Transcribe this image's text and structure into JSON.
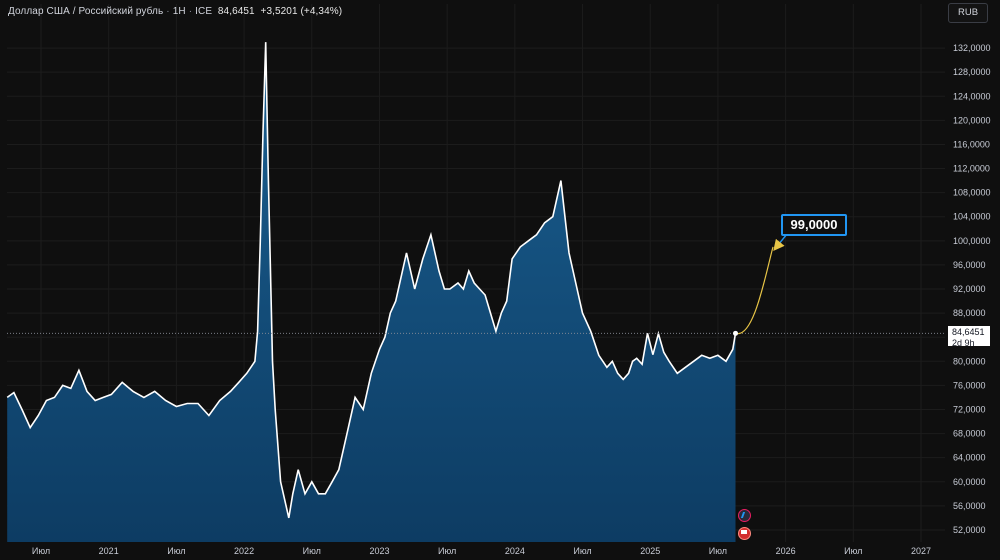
{
  "legend": {
    "instrument": "Доллар США / Российский рубль",
    "interval": "1Н",
    "exchange": "ICE",
    "price": "84,6451",
    "change": "+3,5201 (+4,34%)"
  },
  "currency_button": "RUB",
  "price_tag": {
    "value": "84,6451",
    "countdown": "2d 9h"
  },
  "target_label": "99,0000",
  "colors": {
    "line": "#ffffff",
    "area_top": "#1a5f91",
    "area_bottom": "#0d3c63",
    "projection": "#e8c547",
    "target_border": "#2196f3"
  },
  "chart_data": {
    "type": "area",
    "title": "",
    "ylim": [
      50,
      136
    ],
    "y_ticks": [
      "132,0000",
      "128,0000",
      "124,0000",
      "120,0000",
      "116,0000",
      "112,0000",
      "108,0000",
      "104,0000",
      "100,0000",
      "96,0000",
      "92,0000",
      "88,0000",
      "84,0000",
      "80,0000",
      "76,0000",
      "72,0000",
      "68,0000",
      "64,0000",
      "60,0000",
      "56,0000",
      "52,0000"
    ],
    "x_ticks": [
      "Июл",
      "2021",
      "Июл",
      "2022",
      "Июл",
      "2023",
      "Июл",
      "2024",
      "Июл",
      "2025",
      "Июл",
      "2026",
      "Июл",
      "2027"
    ],
    "x_tick_dates": [
      2020.5,
      2021.0,
      2021.5,
      2022.0,
      2022.5,
      2023.0,
      2023.5,
      2024.0,
      2024.5,
      2025.0,
      2025.5,
      2026.0,
      2026.5,
      2027.0
    ],
    "current_price": 84.6451,
    "projection_target": 99.0,
    "series": [
      {
        "x": [
          2020.25,
          2020.3,
          2020.36,
          2020.42,
          2020.48,
          2020.54,
          2020.6,
          2020.66,
          2020.72,
          2020.78,
          2020.84,
          2020.9,
          2020.96,
          2021.02,
          2021.1,
          2021.18,
          2021.26,
          2021.34,
          2021.42,
          2021.5,
          2021.58,
          2021.66,
          2021.74,
          2021.82,
          2021.9,
          2021.96,
          2022.02,
          2022.08,
          2022.1,
          2022.12,
          2022.14,
          2022.16,
          2022.18,
          2022.19,
          2022.21,
          2022.23,
          2022.25,
          2022.27,
          2022.3,
          2022.33,
          2022.36,
          2022.4,
          2022.45,
          2022.5,
          2022.55,
          2022.6,
          2022.65,
          2022.7,
          2022.76,
          2022.82,
          2022.88,
          2022.94,
          2023.0,
          2023.04,
          2023.08,
          2023.12,
          2023.2,
          2023.26,
          2023.32,
          2023.38,
          2023.44,
          2023.48,
          2023.52,
          2023.58,
          2023.62,
          2023.66,
          2023.7,
          2023.74,
          2023.78,
          2023.82,
          2023.86,
          2023.9,
          2023.94,
          2023.98,
          2024.04,
          2024.1,
          2024.16,
          2024.22,
          2024.28,
          2024.34,
          2024.4,
          2024.46,
          2024.5,
          2024.56,
          2024.62,
          2024.68,
          2024.72,
          2024.76,
          2024.8,
          2024.84,
          2024.87,
          2024.9,
          2024.94,
          2024.98,
          2025.02,
          2025.06,
          2025.1,
          2025.14,
          2025.2,
          2025.26,
          2025.32,
          2025.38,
          2025.44,
          2025.5,
          2025.56,
          2025.61,
          2025.63
        ],
        "y": [
          74,
          74.8,
          72,
          69,
          71,
          73.5,
          74,
          76,
          75.5,
          78.5,
          75,
          73.5,
          74,
          74.5,
          76.5,
          75,
          74,
          75,
          73.5,
          72.5,
          73,
          73,
          71,
          73.5,
          75,
          76.5,
          78,
          80,
          85,
          100,
          118,
          133,
          110,
          100,
          80,
          72,
          66,
          60,
          57,
          54,
          58,
          62,
          58,
          60,
          58,
          58,
          60,
          62,
          68,
          74,
          72,
          78,
          82,
          84,
          88,
          90,
          98,
          92,
          97,
          101,
          95,
          92,
          92,
          93,
          92,
          95,
          93,
          92,
          91,
          88,
          85,
          88,
          90,
          97,
          99,
          100,
          101,
          103,
          104,
          110,
          98,
          92,
          88,
          85,
          81,
          79,
          80,
          78,
          77,
          78,
          80,
          80.5,
          79.5,
          84.6451,
          81.1,
          84.6,
          81.5,
          80,
          78,
          79,
          80,
          81,
          80.5,
          81,
          80,
          82,
          84.6451
        ]
      }
    ]
  }
}
